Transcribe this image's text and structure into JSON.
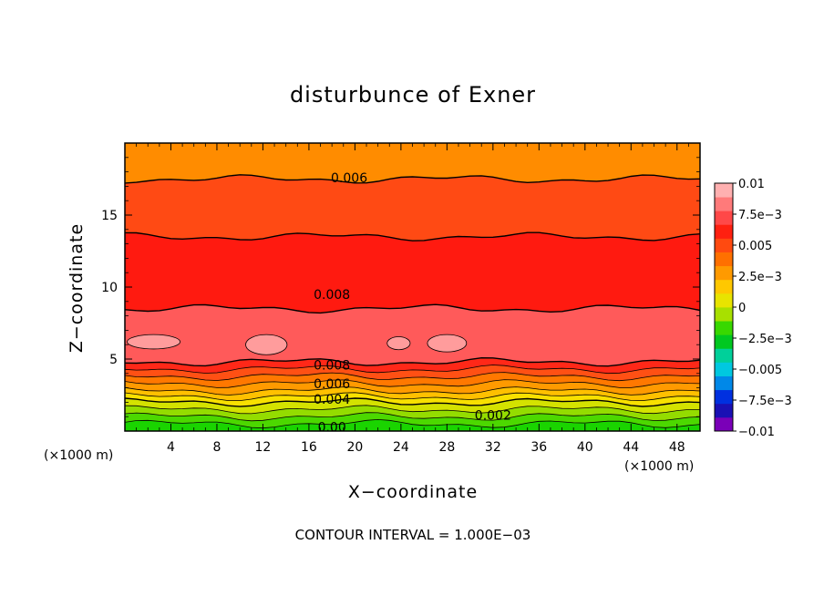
{
  "chart_data": {
    "type": "contour",
    "title": "disturbunce of Exner",
    "xlabel": "X−coordinate",
    "ylabel": "Z−coordinate",
    "x_unit_left": "(×1000 m)",
    "x_unit_right": "(×1000 m)",
    "xlim": [
      0,
      50
    ],
    "ylim": [
      0,
      20
    ],
    "x_ticks": [
      "4",
      "8",
      "12",
      "16",
      "20",
      "24",
      "28",
      "32",
      "36",
      "40",
      "44",
      "48"
    ],
    "y_ticks": [
      "5",
      "10",
      "15"
    ],
    "note": "CONTOUR INTERVAL = 1.000E−03",
    "levels": [
      -0.01,
      -0.0075,
      -0.005,
      -0.0025,
      0,
      0.0025,
      0.005,
      0.0075,
      0.01
    ],
    "colorbar_labels": [
      "0.01",
      "7.5e−3",
      "0.005",
      "2.5e−3",
      "0",
      "−2.5e−3",
      "−0.005",
      "−7.5e−3",
      "−0.01"
    ],
    "colorbar_colors": [
      "#7a00b8",
      "#1a10b4",
      "#0030e0",
      "#0088e8",
      "#00c8e0",
      "#00d09a",
      "#00c820",
      "#38d800",
      "#a8e000",
      "#e8e400",
      "#ffc800",
      "#ff9a00",
      "#ff7000",
      "#ff4a10",
      "#ff2010",
      "#ff4848",
      "#ff7a7a",
      "#ffb0b0"
    ],
    "bands": [
      {
        "z": [
          0.0,
          0.5
        ],
        "color": "#1ad400"
      },
      {
        "z": [
          0.5,
          1.0
        ],
        "color": "#4cd800"
      },
      {
        "z": [
          1.0,
          1.5
        ],
        "color": "#94dc00"
      },
      {
        "z": [
          1.5,
          2.0
        ],
        "color": "#d4e200"
      },
      {
        "z": [
          2.0,
          2.4
        ],
        "color": "#f8e000"
      },
      {
        "z": [
          2.4,
          2.8
        ],
        "color": "#ffc000"
      },
      {
        "z": [
          2.8,
          3.3
        ],
        "color": "#ff9a00"
      },
      {
        "z": [
          3.3,
          3.8
        ],
        "color": "#ff7800"
      },
      {
        "z": [
          3.8,
          4.3
        ],
        "color": "#ff5014"
      },
      {
        "z": [
          4.3,
          4.8
        ],
        "color": "#ff2818"
      },
      {
        "z": [
          4.8,
          8.5
        ],
        "color": "#ff5a5a"
      },
      {
        "z": [
          8.5,
          13.5
        ],
        "color": "#ff1a10"
      },
      {
        "z": [
          13.5,
          17.5
        ],
        "color": "#ff4a14"
      },
      {
        "z": [
          17.5,
          20.0
        ],
        "color": "#ff8c00"
      }
    ],
    "contour_labels": [
      {
        "text": "0.006",
        "x": 19.5,
        "z": 17.6
      },
      {
        "text": "0.008",
        "x": 18.0,
        "z": 9.5
      },
      {
        "text": "0.008",
        "x": 18.0,
        "z": 4.6
      },
      {
        "text": "0.006",
        "x": 18.0,
        "z": 3.3
      },
      {
        "text": "0.004",
        "x": 18.0,
        "z": 2.2
      },
      {
        "text": "0.002",
        "x": 32.0,
        "z": 1.1
      },
      {
        "text": "0.00",
        "x": 18.0,
        "z": 0.3
      }
    ],
    "max_regions": [
      {
        "x": 2.5,
        "z": 6.2,
        "rx": 2.3,
        "rz": 0.5
      },
      {
        "x": 12.3,
        "z": 6.0,
        "rx": 1.8,
        "rz": 0.7
      },
      {
        "x": 23.8,
        "z": 6.1,
        "rx": 1.0,
        "rz": 0.45
      },
      {
        "x": 28.0,
        "z": 6.1,
        "rx": 1.7,
        "rz": 0.6
      }
    ]
  }
}
